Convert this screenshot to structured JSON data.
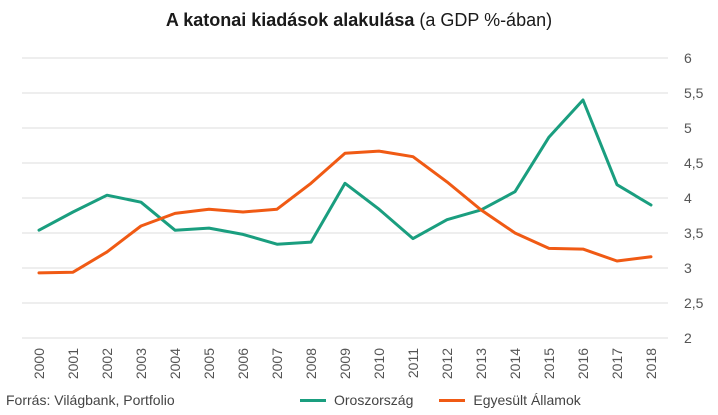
{
  "title": "A katonai kiadások alakulása",
  "subtitle": "(a GDP %-ában)",
  "source": "Forrás: Világbank, Portfolio",
  "colors": {
    "russia": "#1a9e7f",
    "usa": "#f05a14",
    "grid": "#dcdcdc",
    "tick": "#555555"
  },
  "chart_data": {
    "type": "line",
    "title": "A katonai kiadások alakulása (a GDP %-ában)",
    "x": [
      "2000",
      "2001",
      "2002",
      "2003",
      "2004",
      "2005",
      "2006",
      "2007",
      "2008",
      "2009",
      "2010",
      "2011",
      "2012",
      "2013",
      "2014",
      "2015",
      "2016",
      "2017",
      "2018"
    ],
    "y_ticks": [
      "2",
      "2,5",
      "3",
      "3,5",
      "4",
      "4,5",
      "5",
      "5,5",
      "6"
    ],
    "ylim": [
      2,
      6
    ],
    "grid": true,
    "y_axis_side": "right",
    "legend_position": "bottom",
    "series": [
      {
        "name": "Oroszország",
        "color": "#1a9e7f",
        "values": [
          3.54,
          3.8,
          4.04,
          3.94,
          3.54,
          3.57,
          3.48,
          3.34,
          3.37,
          4.21,
          3.84,
          3.42,
          3.69,
          3.83,
          4.09,
          4.87,
          5.4,
          4.19,
          3.9
        ]
      },
      {
        "name": "Egyesült Államok",
        "color": "#f05a14",
        "values": [
          2.93,
          2.94,
          3.23,
          3.6,
          3.78,
          3.84,
          3.8,
          3.84,
          4.21,
          4.64,
          4.67,
          4.59,
          4.23,
          3.83,
          3.5,
          3.28,
          3.27,
          3.1,
          3.16
        ]
      }
    ]
  }
}
